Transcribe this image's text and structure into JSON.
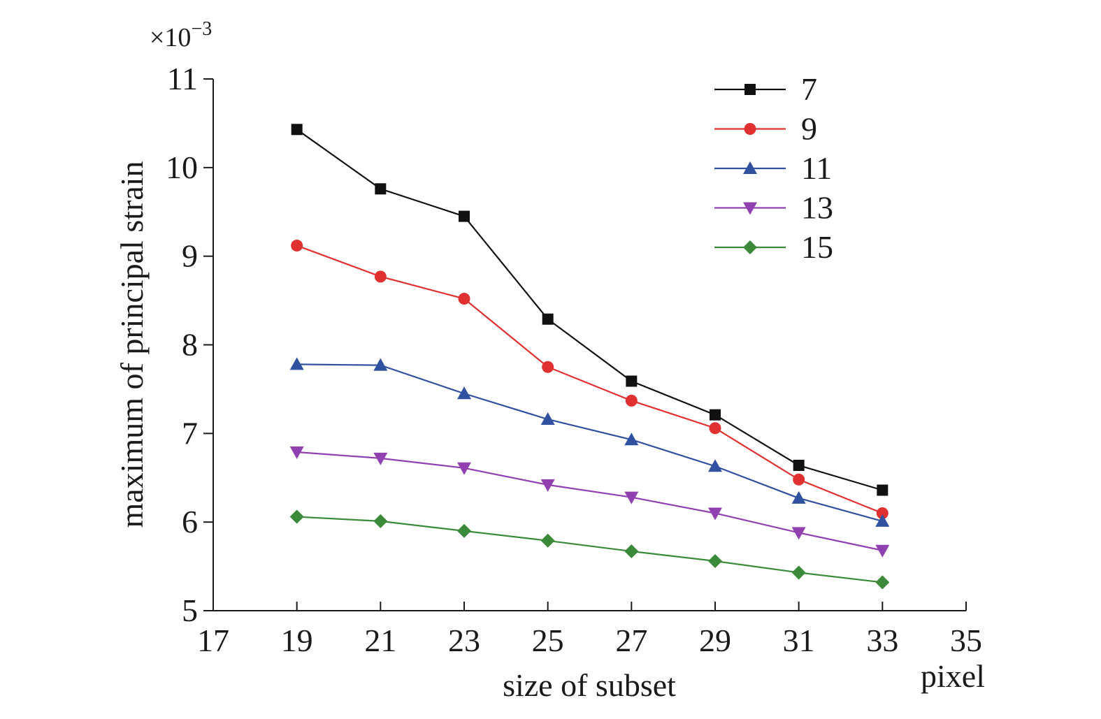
{
  "chart_data": {
    "type": "line",
    "title": "",
    "xlabel": "size of subset",
    "xunit": "pixel",
    "ylabel": "maximum of principal strain",
    "yscale_label": "×10",
    "yscale_exponent": "−3",
    "xlim": [
      17,
      35
    ],
    "ylim": [
      5,
      11
    ],
    "xticks": [
      "17",
      "19",
      "21",
      "23",
      "25",
      "27",
      "29",
      "31",
      "33",
      "35"
    ],
    "yticks": [
      "5",
      "6",
      "7",
      "8",
      "9",
      "10",
      "11"
    ],
    "x": [
      19,
      21,
      23,
      25,
      27,
      29,
      31,
      33
    ],
    "grid": false,
    "legend_position": "top-right",
    "series": [
      {
        "name": "7",
        "color": "#111111",
        "marker": "square",
        "values": [
          10.43,
          9.76,
          9.45,
          8.29,
          7.59,
          7.21,
          6.64,
          6.36
        ]
      },
      {
        "name": "9",
        "color": "#e03030",
        "marker": "circle",
        "values": [
          9.12,
          8.77,
          8.52,
          7.75,
          7.37,
          7.06,
          6.48,
          6.1
        ]
      },
      {
        "name": "11",
        "color": "#3050a0",
        "marker": "triangle-up",
        "values": [
          7.78,
          7.77,
          7.45,
          7.16,
          6.93,
          6.63,
          6.27,
          6.01
        ]
      },
      {
        "name": "13",
        "color": "#9040b0",
        "marker": "triangle-down",
        "values": [
          6.79,
          6.72,
          6.61,
          6.42,
          6.28,
          6.1,
          5.88,
          5.68
        ]
      },
      {
        "name": "15",
        "color": "#3a8a3a",
        "marker": "diamond",
        "values": [
          6.06,
          6.01,
          5.9,
          5.79,
          5.67,
          5.56,
          5.43,
          5.32
        ]
      }
    ]
  }
}
